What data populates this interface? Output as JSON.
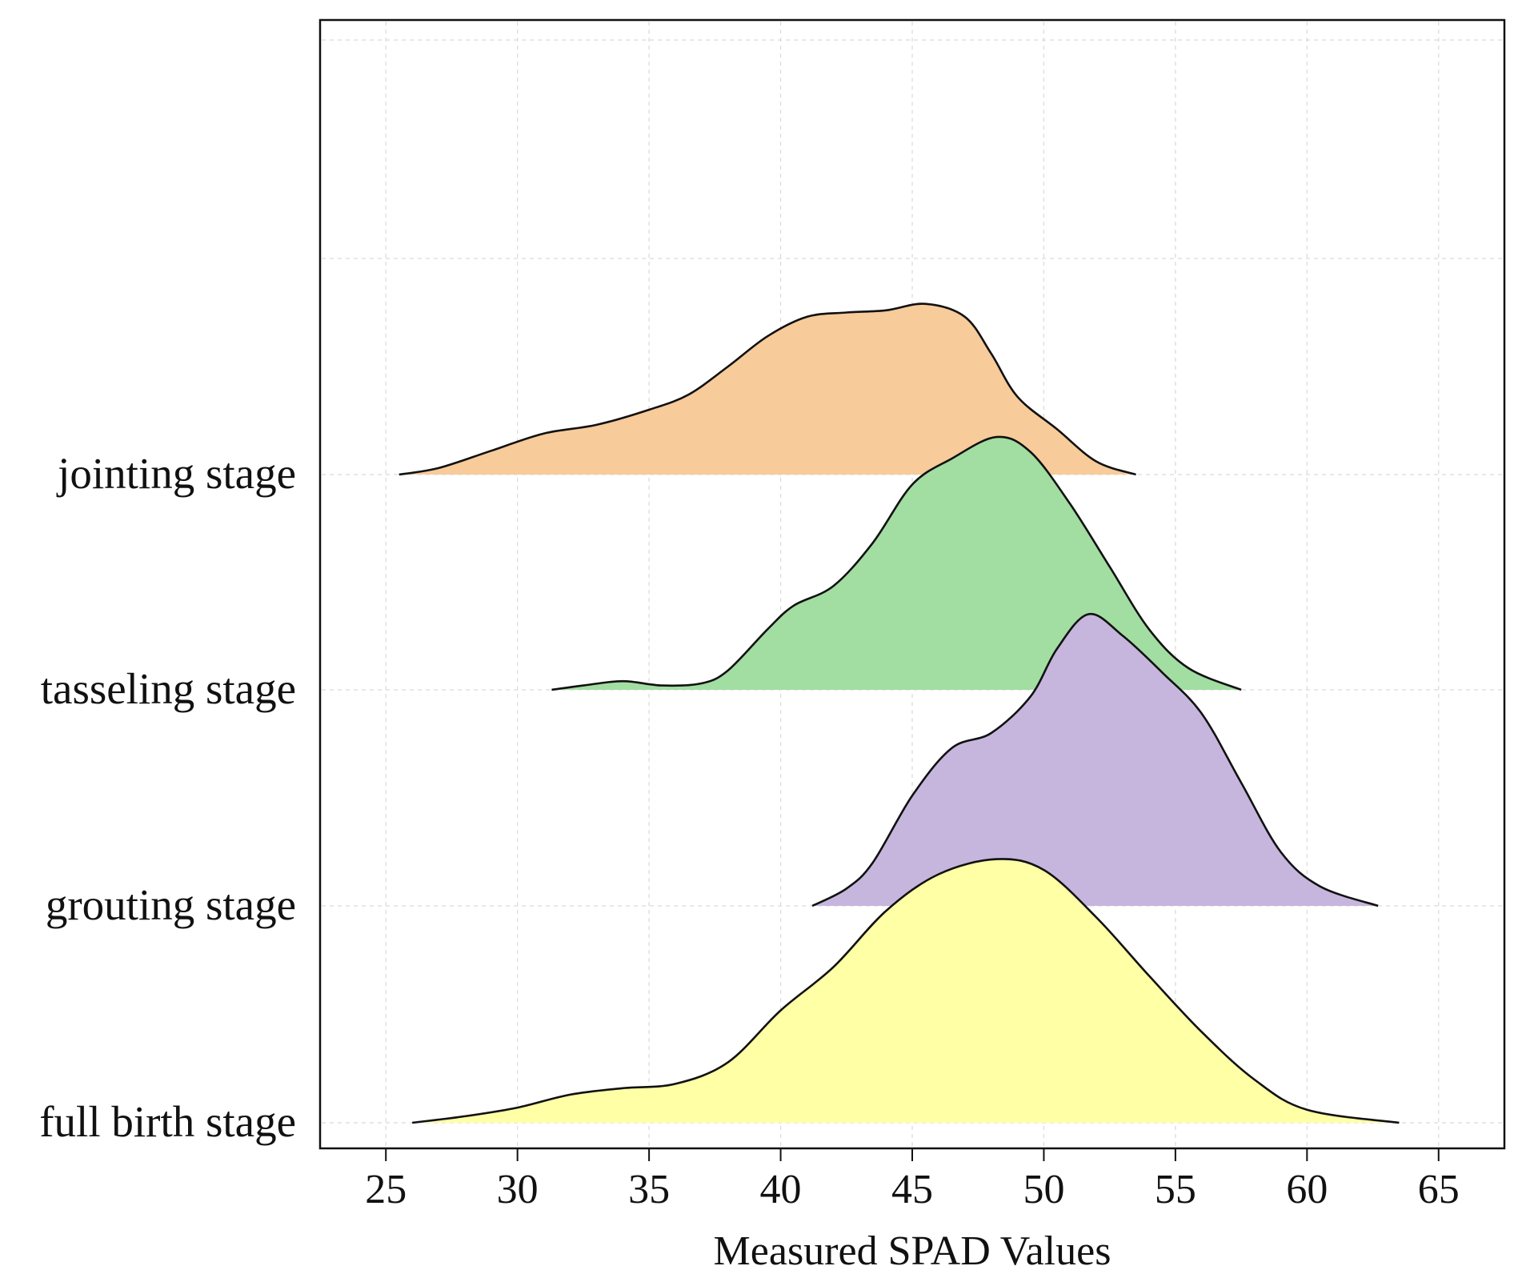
{
  "chart_data": {
    "type": "ridgeline",
    "xlabel": "Measured SPAD Values",
    "xlim": [
      22.5,
      67.5
    ],
    "xticks": [
      25,
      30,
      35,
      40,
      45,
      50,
      55,
      60,
      65
    ],
    "grid": true,
    "series": [
      {
        "name": "jointing stage",
        "color": "#F7CB9A",
        "range": [
          25.5,
          53.5
        ],
        "density_points": [
          [
            25.5,
            0.0
          ],
          [
            27,
            0.03
          ],
          [
            29,
            0.11
          ],
          [
            31,
            0.19
          ],
          [
            33,
            0.23
          ],
          [
            35,
            0.3
          ],
          [
            36.5,
            0.37
          ],
          [
            38,
            0.5
          ],
          [
            39.5,
            0.64
          ],
          [
            41,
            0.73
          ],
          [
            42.5,
            0.75
          ],
          [
            44,
            0.76
          ],
          [
            45.5,
            0.79
          ],
          [
            47,
            0.73
          ],
          [
            48,
            0.56
          ],
          [
            49,
            0.36
          ],
          [
            50.5,
            0.21
          ],
          [
            52,
            0.06
          ],
          [
            53.5,
            0.0
          ]
        ]
      },
      {
        "name": "tasseling stage",
        "color": "#A2DDA2",
        "range": [
          31.3,
          57.5
        ],
        "density_points": [
          [
            31.3,
            0.0
          ],
          [
            32.5,
            0.02
          ],
          [
            34,
            0.04
          ],
          [
            35.5,
            0.02
          ],
          [
            37,
            0.03
          ],
          [
            38,
            0.09
          ],
          [
            39.5,
            0.28
          ],
          [
            40.5,
            0.39
          ],
          [
            42,
            0.48
          ],
          [
            43.5,
            0.68
          ],
          [
            45,
            0.95
          ],
          [
            46.5,
            1.07
          ],
          [
            48.2,
            1.17
          ],
          [
            49.5,
            1.1
          ],
          [
            51,
            0.86
          ],
          [
            52.5,
            0.57
          ],
          [
            54,
            0.28
          ],
          [
            55.5,
            0.1
          ],
          [
            57.5,
            0.0
          ]
        ]
      },
      {
        "name": "grouting stage",
        "color": "#C6B6DE",
        "range": [
          41.2,
          62.7
        ],
        "density_points": [
          [
            41.2,
            0.0
          ],
          [
            42.5,
            0.08
          ],
          [
            43.5,
            0.2
          ],
          [
            45,
            0.51
          ],
          [
            46.5,
            0.73
          ],
          [
            48,
            0.8
          ],
          [
            49.5,
            0.97
          ],
          [
            50.5,
            1.19
          ],
          [
            51.7,
            1.35
          ],
          [
            53,
            1.25
          ],
          [
            54.5,
            1.08
          ],
          [
            56,
            0.89
          ],
          [
            57.5,
            0.57
          ],
          [
            59,
            0.25
          ],
          [
            60.5,
            0.09
          ],
          [
            62.7,
            0.0
          ]
        ]
      },
      {
        "name": "full birth stage",
        "color": "#FFFFA6",
        "range": [
          26,
          63.5
        ],
        "density_points": [
          [
            26,
            0.0
          ],
          [
            28,
            0.03
          ],
          [
            30,
            0.07
          ],
          [
            32,
            0.13
          ],
          [
            34,
            0.16
          ],
          [
            36,
            0.18
          ],
          [
            38,
            0.28
          ],
          [
            40,
            0.52
          ],
          [
            42,
            0.72
          ],
          [
            44,
            0.98
          ],
          [
            46,
            1.15
          ],
          [
            48.2,
            1.22
          ],
          [
            50,
            1.17
          ],
          [
            52,
            0.95
          ],
          [
            54,
            0.68
          ],
          [
            56,
            0.42
          ],
          [
            58,
            0.2
          ],
          [
            60,
            0.06
          ],
          [
            63.5,
            0.0
          ]
        ]
      }
    ]
  }
}
